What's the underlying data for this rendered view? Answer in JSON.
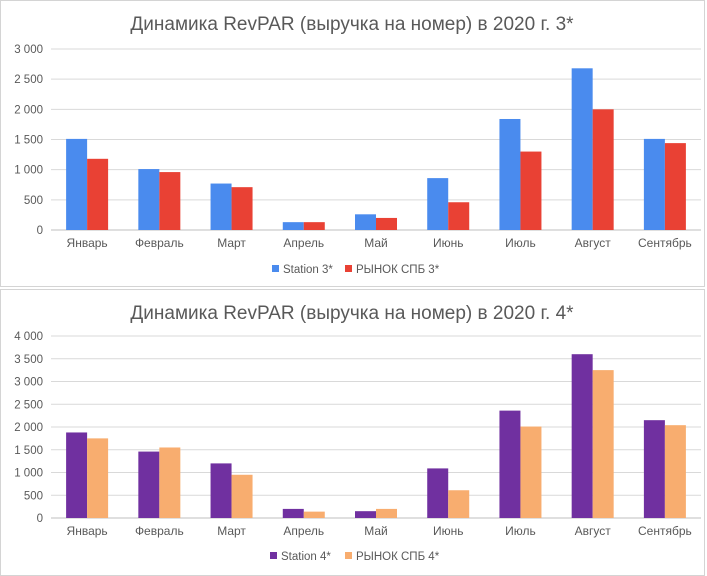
{
  "chart_data": [
    {
      "type": "bar",
      "title": "Динамика RevPAR (выручка на номер) в 2020 г. 3*",
      "categories": [
        "Январь",
        "Февраль",
        "Март",
        "Апрель",
        "Май",
        "Июнь",
        "Июль",
        "Август",
        "Сентябрь"
      ],
      "series": [
        {
          "name": "Station 3*",
          "color": "#4a8bee",
          "values": [
            1510,
            1010,
            770,
            130,
            260,
            860,
            1840,
            2680,
            1510
          ]
        },
        {
          "name": "РЫНОК СПБ 3*",
          "color": "#e94134",
          "values": [
            1180,
            960,
            710,
            130,
            200,
            460,
            1300,
            2000,
            1440
          ]
        }
      ],
      "ylim": [
        0,
        3000
      ],
      "yticks": [
        "0",
        "500",
        "1 000",
        "1 500",
        "2 000",
        "2 500",
        "3 000"
      ],
      "ytick_values": [
        0,
        500,
        1000,
        1500,
        2000,
        2500,
        3000
      ],
      "grid": true,
      "legend": "bottom"
    },
    {
      "type": "bar",
      "title": "Динамика RevPAR (выручка на номер) в 2020 г. 4*",
      "categories": [
        "Январь",
        "Февраль",
        "Март",
        "Апрель",
        "Май",
        "Июнь",
        "Июль",
        "Август",
        "Сентябрь"
      ],
      "series": [
        {
          "name": "Station 4*",
          "color": "#7030a0",
          "values": [
            1880,
            1460,
            1200,
            200,
            150,
            1090,
            2360,
            3600,
            2150
          ]
        },
        {
          "name": "РЫНОК СПБ 4*",
          "color": "#f8ad6f",
          "values": [
            1750,
            1550,
            950,
            140,
            200,
            610,
            2010,
            3250,
            2040
          ]
        }
      ],
      "ylim": [
        0,
        4000
      ],
      "yticks": [
        "0",
        "500",
        "1 000",
        "1 500",
        "2 000",
        "2 500",
        "3 000",
        "3 500",
        "4 000"
      ],
      "ytick_values": [
        0,
        500,
        1000,
        1500,
        2000,
        2500,
        3000,
        3500,
        4000
      ],
      "grid": true,
      "legend": "bottom"
    }
  ]
}
